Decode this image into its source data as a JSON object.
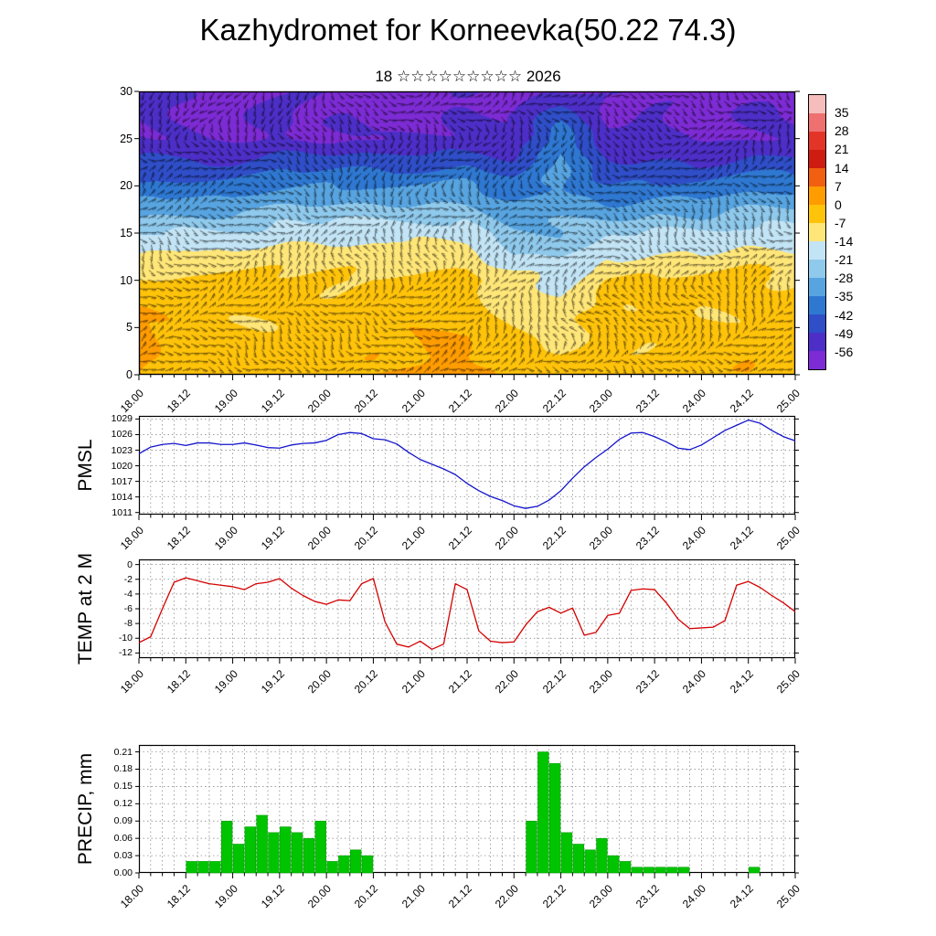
{
  "title": "Kazhydromet for Korneevka(50.22 74.3)",
  "subtitle": "18 ☆☆☆☆☆☆☆☆☆ 2026",
  "chart_data": {
    "type": "meteogram",
    "x_tick_labels": [
      "18.00",
      "18.12",
      "19.00",
      "19.12",
      "20.00",
      "20.12",
      "21.00",
      "21.12",
      "22.00",
      "22.12",
      "23.00",
      "23.12",
      "24.00",
      "24.12",
      "25.00"
    ],
    "x_span_hours": 168,
    "time_step_hours": 3,
    "panels": [
      {
        "id": "cross_section",
        "type": "heatmap",
        "label": "",
        "overlay": "wind-barbs",
        "y_ticks": [
          30,
          25,
          20,
          15,
          10,
          5,
          0
        ],
        "y_tick_labels": [
          "30",
          "25",
          "20",
          "15",
          "10",
          "5",
          "0"
        ],
        "y_range": [
          0,
          30
        ],
        "levels": [
          0,
          5,
          10,
          15,
          20,
          25,
          30
        ],
        "times": [
          "18.00",
          "18.12",
          "19.00",
          "19.12",
          "20.00",
          "20.12",
          "21.00",
          "21.12",
          "22.00",
          "22.12",
          "23.00",
          "23.12",
          "24.00",
          "24.12",
          "25.00"
        ],
        "temperature_grid": [
          [
            2,
            -2,
            -3,
            -2,
            -2,
            1,
            -1,
            2,
            -6,
            -5,
            -3,
            -4,
            -4,
            1,
            -3
          ],
          [
            1,
            -4,
            -5,
            -4,
            -3,
            -2,
            -2,
            -1,
            -8,
            -10,
            -6,
            -5,
            -6,
            -3,
            -4
          ],
          [
            -9,
            -6,
            -7,
            -6,
            -5,
            -4,
            -4,
            -3,
            -12,
            -16,
            -7,
            -6,
            -7,
            -5,
            -6
          ],
          [
            -22,
            -20,
            -21,
            -19,
            -18,
            -17,
            -16,
            -15,
            -24,
            -26,
            -22,
            -20,
            -21,
            -19,
            -20
          ],
          [
            -40,
            -38,
            -39,
            -37,
            -36,
            -37,
            -36,
            -35,
            -40,
            -33,
            -40,
            -38,
            -39,
            -37,
            -38
          ],
          [
            -56,
            -55,
            -56,
            -54,
            -55,
            -56,
            -55,
            -54,
            -56,
            -38,
            -56,
            -55,
            -56,
            -55,
            -55
          ],
          [
            -58,
            -57,
            -58,
            -57,
            -57,
            -58,
            -57,
            -56,
            -57,
            -57,
            -58,
            -57,
            -58,
            -57,
            -57
          ]
        ],
        "colorbar": {
          "boundary_labels": [
            35,
            28,
            21,
            14,
            7,
            0,
            -7,
            -14,
            -21,
            -28,
            -35,
            -42,
            -49,
            -56
          ],
          "colors": [
            "#f6bdbd",
            "#ee7070",
            "#e33428",
            "#cf1c10",
            "#f06010",
            "#ff9c00",
            "#ffc30a",
            "#ffe678",
            "#c2e4f5",
            "#8fc9ec",
            "#57a4e0",
            "#2f78d2",
            "#2f4ec8",
            "#4d2fc8",
            "#7d2bd4"
          ]
        }
      },
      {
        "id": "pmsl",
        "type": "line",
        "label": "PMSL",
        "color": "#1414cc",
        "y_ticks": [
          1029,
          1026,
          1023,
          1020,
          1017,
          1014,
          1011
        ],
        "y_tick_labels": [
          "1029",
          "1026",
          "1023",
          "1020",
          "1017",
          "1014",
          "1011"
        ],
        "y_range": [
          1010.6,
          1029.6
        ],
        "values": [
          1022.3,
          1023.6,
          1024.1,
          1024.3,
          1023.9,
          1024.4,
          1024.4,
          1024.1,
          1024.1,
          1024.4,
          1024.0,
          1023.5,
          1023.4,
          1024.0,
          1024.3,
          1024.4,
          1024.9,
          1026.0,
          1026.4,
          1026.2,
          1025.2,
          1025.0,
          1024.2,
          1022.6,
          1021.2,
          1020.3,
          1019.4,
          1018.3,
          1016.6,
          1015.2,
          1014.1,
          1013.3,
          1012.3,
          1011.8,
          1012.2,
          1013.4,
          1015.2,
          1017.6,
          1019.8,
          1021.6,
          1023.2,
          1025.1,
          1026.3,
          1026.4,
          1025.6,
          1024.6,
          1023.4,
          1023.1,
          1024.0,
          1025.4,
          1026.8,
          1027.8,
          1028.8,
          1028.2,
          1026.8,
          1025.6,
          1024.8
        ]
      },
      {
        "id": "temp2m",
        "type": "line",
        "label": "TEMP at 2 M",
        "color": "#d40000",
        "y_ticks": [
          0,
          -2,
          -4,
          -6,
          -8,
          -10,
          -12
        ],
        "y_tick_labels": [
          "0",
          "-2",
          "-4",
          "-6",
          "-8",
          "-10",
          "-12"
        ],
        "y_range": [
          -12.7,
          0.7
        ],
        "values": [
          -10.6,
          -9.8,
          -6.0,
          -2.4,
          -1.8,
          -2.2,
          -2.6,
          -2.8,
          -3.0,
          -3.4,
          -2.6,
          -2.4,
          -1.9,
          -3.2,
          -4.2,
          -5.0,
          -5.4,
          -4.8,
          -4.9,
          -2.6,
          -1.9,
          -7.8,
          -10.8,
          -11.2,
          -10.4,
          -11.5,
          -10.8,
          -2.6,
          -3.4,
          -9.0,
          -10.4,
          -10.6,
          -10.5,
          -8.2,
          -6.4,
          -5.8,
          -6.6,
          -5.9,
          -9.6,
          -9.2,
          -6.9,
          -6.6,
          -3.5,
          -3.3,
          -3.4,
          -5.2,
          -7.4,
          -8.7,
          -8.6,
          -8.5,
          -7.6,
          -2.8,
          -2.3,
          -3.1,
          -4.2,
          -5.2,
          -6.4
        ]
      },
      {
        "id": "precip",
        "type": "bar",
        "label": "PRECIP, mm",
        "color": "#00c400",
        "y_ticks": [
          0.21,
          0.18,
          0.15,
          0.12,
          0.09,
          0.06,
          0.03,
          0
        ],
        "y_tick_labels": [
          "0.21",
          "0.18",
          "0.15",
          "0.12",
          "0.09",
          "0.06",
          "0.03",
          "0.00"
        ],
        "y_range": [
          0,
          0.222
        ],
        "values": [
          0,
          0,
          0,
          0,
          0.02,
          0.02,
          0.02,
          0.09,
          0.05,
          0.08,
          0.1,
          0.07,
          0.08,
          0.07,
          0.06,
          0.09,
          0.02,
          0.03,
          0.04,
          0.03,
          0,
          0,
          0,
          0,
          0,
          0,
          0,
          0,
          0,
          0,
          0,
          0,
          0,
          0.09,
          0.21,
          0.19,
          0.07,
          0.05,
          0.04,
          0.06,
          0.03,
          0.02,
          0.01,
          0.01,
          0.01,
          0.01,
          0.01,
          0,
          0,
          0,
          0,
          0,
          0.01,
          0,
          0,
          0
        ]
      }
    ]
  }
}
